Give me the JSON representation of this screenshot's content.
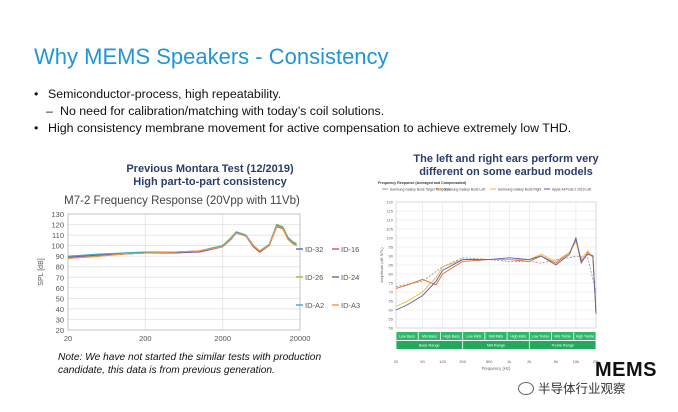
{
  "slide": {
    "title": "Why MEMS Speakers - Consistency",
    "bullets": [
      {
        "type": "bullet",
        "marker": "•",
        "text": "Semiconductor-process, high repeatability."
      },
      {
        "type": "sub",
        "marker": "–",
        "text": "No need for calibration/matching with today’s coil solutions."
      },
      {
        "type": "bullet",
        "marker": "•",
        "text": "High consistency membrane movement for active compensation to achieve extremely low THD."
      }
    ],
    "left_caption_line1": "Previous Montara Test (12/2019)",
    "left_caption_line2": "High part-to-part consistency",
    "right_caption_line1": "The left and right ears perform very",
    "right_caption_line2": "different on some earbud models",
    "note_line1": "Note: We have not started the similar tests with production",
    "note_line2": "candidate, this data is from previous generation.",
    "logo_text": "MEMS",
    "watermark_text": "半导体行业观察"
  },
  "chart_data": [
    {
      "type": "line",
      "title": "M7-2 Frequency Response (20Vpp with 11Vb)",
      "xlabel": "",
      "ylabel": "SPL [dB]",
      "xscale": "log",
      "xlim": [
        20,
        20000
      ],
      "ylim": [
        20,
        130
      ],
      "x_ticks": [
        "20",
        "200",
        "2000",
        "20000"
      ],
      "y_ticks": [
        "20",
        "30",
        "40",
        "50",
        "60",
        "70",
        "80",
        "90",
        "100",
        "110",
        "120",
        "130"
      ],
      "grid": true,
      "legend_position": "right",
      "series": [
        {
          "name": "ID-32",
          "color": "#4a6fb5",
          "x": [
            20,
            50,
            100,
            200,
            500,
            1000,
            2000,
            2500,
            3000,
            4000,
            5000,
            6000,
            8000,
            10000,
            12000,
            14000,
            16000,
            18000
          ],
          "y": [
            89,
            91,
            92,
            93,
            94,
            95,
            100,
            106,
            113,
            110,
            100,
            95,
            101,
            119,
            117,
            107,
            103,
            101
          ]
        },
        {
          "name": "ID-16",
          "color": "#d9534f",
          "x": [
            20,
            50,
            100,
            200,
            500,
            1000,
            2000,
            2500,
            3000,
            4000,
            5000,
            6000,
            8000,
            10000,
            12000,
            14000,
            16000,
            18000
          ],
          "y": [
            88,
            90,
            92,
            93,
            94,
            94,
            99,
            105,
            112,
            109,
            99,
            94,
            100,
            118,
            116,
            106,
            102,
            100
          ]
        },
        {
          "name": "ID-26",
          "color": "#8fbf3f",
          "x": [
            20,
            50,
            100,
            200,
            500,
            1000,
            2000,
            2500,
            3000,
            4000,
            5000,
            6000,
            8000,
            10000,
            12000,
            14000,
            16000,
            18000
          ],
          "y": [
            90,
            91,
            93,
            94,
            94,
            95,
            100,
            107,
            113,
            110,
            100,
            95,
            101,
            120,
            118,
            108,
            104,
            102
          ]
        },
        {
          "name": "ID-24",
          "color": "#7b5aa6",
          "x": [
            20,
            50,
            100,
            200,
            500,
            1000,
            2000,
            2500,
            3000,
            4000,
            5000,
            6000,
            8000,
            10000,
            12000,
            14000,
            16000,
            18000
          ],
          "y": [
            89,
            91,
            92,
            93,
            93,
            94,
            99,
            106,
            112,
            109,
            99,
            94,
            100,
            119,
            117,
            107,
            103,
            101
          ]
        },
        {
          "name": "ID-A2",
          "color": "#3fa9c9",
          "x": [
            20,
            50,
            100,
            200,
            500,
            1000,
            2000,
            2500,
            3000,
            4000,
            5000,
            6000,
            8000,
            10000,
            12000,
            14000,
            16000,
            18000
          ],
          "y": [
            90,
            92,
            93,
            94,
            94,
            95,
            100,
            106,
            113,
            110,
            100,
            95,
            101,
            120,
            117,
            107,
            103,
            101
          ]
        },
        {
          "name": "ID-A3",
          "color": "#f0953a",
          "x": [
            20,
            50,
            100,
            200,
            500,
            1000,
            2000,
            2500,
            3000,
            4000,
            5000,
            6000,
            8000,
            10000,
            12000,
            14000,
            16000,
            18000
          ],
          "y": [
            88,
            90,
            92,
            93,
            94,
            95,
            99,
            105,
            112,
            109,
            100,
            95,
            100,
            119,
            116,
            106,
            102,
            100
          ]
        }
      ]
    },
    {
      "type": "line",
      "title": "Frequency Response (Averaged and Compensated)",
      "xlabel": "Frequency (Hz)",
      "ylabel": "Amplitude (dB SPL)",
      "xscale": "log",
      "xlim": [
        20,
        20000
      ],
      "ylim": [
        50,
        120
      ],
      "x_ticks": [
        "20",
        "50",
        "100",
        "200",
        "500",
        "1k",
        "2k",
        "5k",
        "10k",
        "20k"
      ],
      "y_ticks": [
        "50",
        "55",
        "60",
        "65",
        "70",
        "75",
        "80",
        "85",
        "90",
        "95",
        "100",
        "105",
        "110",
        "115",
        "120"
      ],
      "grid": true,
      "legend_position": "top",
      "series": [
        {
          "name": "Samsung Galaxy Buds Target Response",
          "color": "#999999",
          "x": [
            20,
            50,
            100,
            200,
            500,
            1000,
            2000,
            3000,
            5000,
            8000,
            10000,
            15000,
            20000
          ],
          "y": [
            73,
            76,
            84,
            89,
            88,
            87,
            87,
            86,
            88,
            89,
            90,
            89,
            70
          ]
        },
        {
          "name": "Samsung Galaxy Buds Left",
          "color": "#e06a2a",
          "x": [
            20,
            30,
            50,
            80,
            100,
            200,
            500,
            1000,
            2000,
            3000,
            5000,
            8000,
            10000,
            12000,
            15000,
            18000,
            20000
          ],
          "y": [
            72,
            74,
            77,
            74,
            80,
            87,
            88,
            88,
            87,
            90,
            86,
            92,
            99,
            86,
            92,
            90,
            58
          ]
        },
        {
          "name": "Samsung Galaxy Buds Right",
          "color": "#f0b73a",
          "x": [
            20,
            30,
            50,
            80,
            100,
            200,
            500,
            1000,
            2000,
            3000,
            5000,
            8000,
            10000,
            12000,
            15000,
            18000,
            20000
          ],
          "y": [
            62,
            65,
            70,
            78,
            84,
            88,
            88,
            88,
            88,
            91,
            87,
            92,
            98,
            88,
            93,
            89,
            60
          ]
        },
        {
          "name": "Apple AirPods 2 2019 Left",
          "color": "#5a5ab0",
          "x": [
            20,
            30,
            50,
            80,
            100,
            200,
            500,
            1000,
            2000,
            3000,
            5000,
            8000,
            10000,
            12000,
            15000,
            18000,
            20000
          ],
          "y": [
            60,
            63,
            68,
            76,
            82,
            88,
            88,
            89,
            88,
            90,
            85,
            91,
            100,
            87,
            91,
            90,
            58
          ]
        }
      ],
      "bands": {
        "row1": [
          "Low Bass",
          "Mid Bass",
          "High Bass",
          "Low Mids",
          "Mid Mids",
          "High Mids",
          "Low Treble",
          "Mid Treble",
          "High Treble"
        ],
        "row2": [
          "Bass Range",
          "Mid Range",
          "Treble Range"
        ]
      }
    }
  ]
}
